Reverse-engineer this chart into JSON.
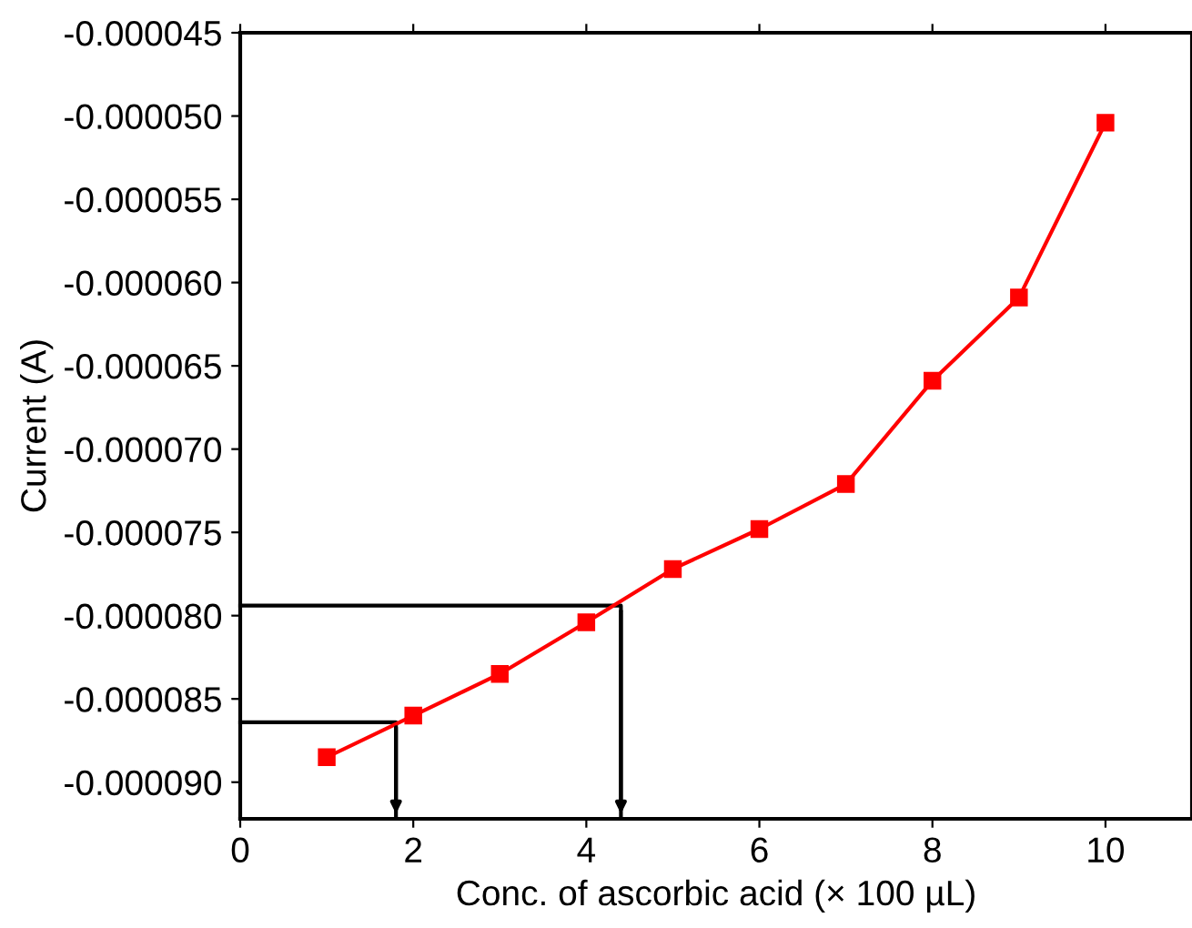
{
  "chart_data": {
    "type": "line",
    "xlabel": "Conc. of ascorbic acid (× 100 µL)",
    "ylabel": "Current (A)",
    "x": [
      1,
      2,
      3,
      4,
      5,
      6,
      7,
      8,
      9,
      10
    ],
    "series": [
      {
        "color": "#ff0000",
        "marker": "square",
        "values": [
          -8.85e-05,
          -8.6e-05,
          -8.35e-05,
          -8.04e-05,
          -7.72e-05,
          -7.48e-05,
          -7.21e-05,
          -6.59e-05,
          -6.09e-05,
          -5.04e-05
        ]
      },
      {
        "color": "#000000",
        "marker": "none",
        "x": [
          0,
          4.4,
          4.4
        ],
        "values": [
          -7.94e-05,
          -7.94e-05,
          -9.22e-05
        ]
      },
      {
        "color": "#000000",
        "marker": "none",
        "x": [
          0,
          1.8,
          1.8
        ],
        "values": [
          -8.64e-05,
          -8.64e-05,
          -9.22e-05
        ]
      }
    ],
    "xlim": [
      0,
      11
    ],
    "xticks": [
      0,
      2,
      4,
      6,
      8,
      10
    ],
    "ylim": [
      -9.22e-05,
      -4.5e-05
    ],
    "yticks": [
      {
        "value": -4.5e-05,
        "label": "-0.000045"
      },
      {
        "value": -5e-05,
        "label": "-0.000050"
      },
      {
        "value": -5.5e-05,
        "label": "-0.000055"
      },
      {
        "value": -6e-05,
        "label": "-0.000060"
      },
      {
        "value": -6.5e-05,
        "label": "-0.000065"
      },
      {
        "value": -7e-05,
        "label": "-0.000070"
      },
      {
        "value": -7.5e-05,
        "label": "-0.000075"
      },
      {
        "value": -8e-05,
        "label": "-0.000080"
      },
      {
        "value": -8.5e-05,
        "label": "-0.000085"
      },
      {
        "value": -9e-05,
        "label": "-0.000090"
      }
    ],
    "grid": false,
    "line_style": "solid"
  }
}
